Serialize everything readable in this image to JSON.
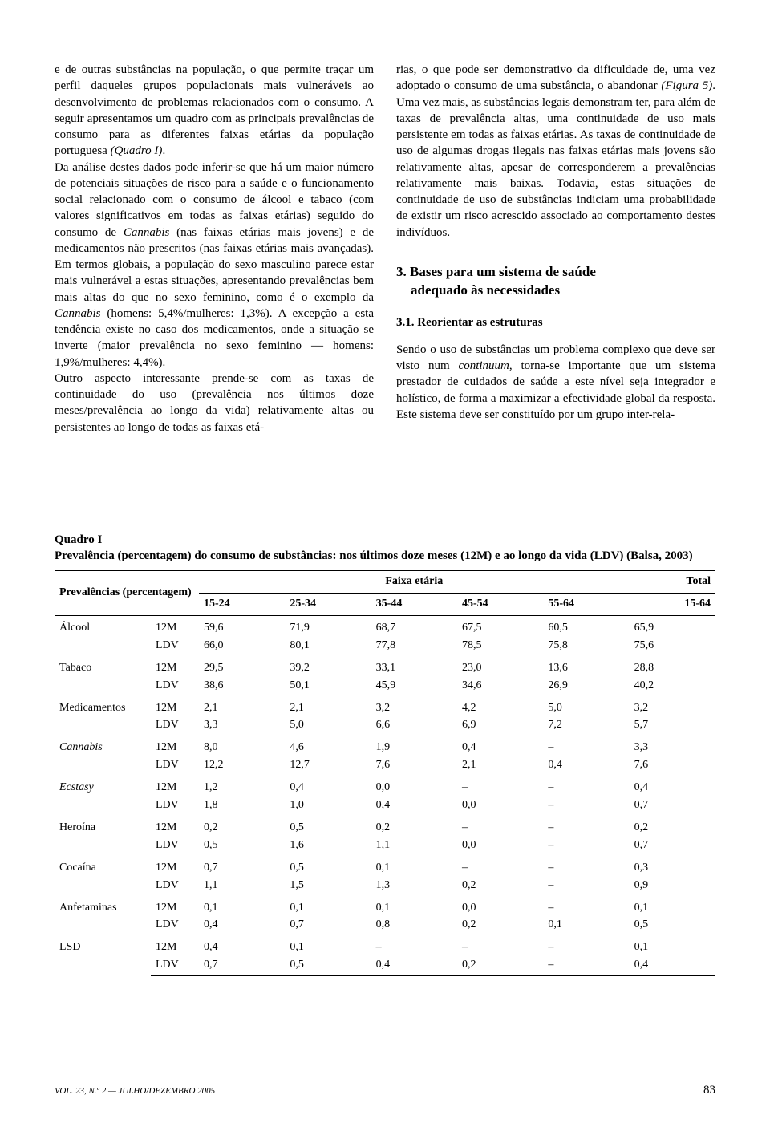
{
  "left_column": {
    "text": "e de outras substâncias na população, o que permite traçar um perfil daqueles grupos populacionais mais vulneráveis ao desenvolvimento de problemas relacionados com o consumo. A seguir apresentamos um quadro com as principais prevalências de consumo para as diferentes faixas etárias da população portuguesa (Quadro I).\nDa análise destes dados pode inferir-se que há um maior número de potenciais situações de risco para a saúde e o funcionamento social relacionado com o consumo de álcool e tabaco (com valores significativos em todas as faixas etárias) seguido do consumo de Cannabis (nas faixas etárias mais jovens) e de medicamentos não prescritos (nas faixas etárias mais avançadas). Em termos globais, a população do sexo masculino parece estar mais vulnerável a estas situações, apresentando prevalências bem mais altas do que no sexo feminino, como é o exemplo da Cannabis (homens: 5,4%/mulheres: 1,3%). A excepção a esta tendência existe no caso dos medicamentos, onde a situação se inverte (maior prevalência no sexo feminino — homens: 1,9%/mulheres: 4,4%).\nOutro aspecto interessante prende-se com as taxas de continuidade do uso (prevalência nos últimos doze meses/prevalência ao longo da vida) relativamente altas ou persistentes ao longo de todas as faixas etá-"
  },
  "right_column": {
    "text_top": "rias, o que pode ser demonstrativo da dificuldade de, uma vez adoptado o consumo de uma substância, o abandonar (Figura 5). Uma vez mais, as substâncias legais demonstram ter, para além de taxas de prevalência altas, uma continuidade de uso mais persistente em todas as faixas etárias. As taxas de continuidade de uso de algumas drogas ilegais nas faixas etárias mais jovens são relativamente altas, apesar de corresponderem a prevalências relativamente mais baixas. Todavia, estas situações de continuidade de uso de substâncias indiciam uma probabilidade de existir um risco acrescido associado ao comportamento destes indivíduos.",
    "section_title_line1": "3. Bases para um sistema de saúde",
    "section_title_line2": "adequado às necessidades",
    "sub_title": "3.1. Reorientar as estruturas",
    "text_bottom": "Sendo o uso de substâncias um problema complexo que deve ser visto num continuum, torna-se importante que um sistema prestador de cuidados de saúde a este nível seja integrador e holístico, de forma a maximizar a efectividade global da resposta. Este sistema deve ser constituído por um grupo inter-rela-"
  },
  "table": {
    "caption_bold": "Quadro I",
    "caption_rest": "Prevalência (percentagem) do consumo de substâncias: nos últimos doze meses (12M) e ao longo da vida (LDV) (Balsa, 2003)",
    "row_header_label": "Prevalências (percentagem)",
    "faixa_label": "Faixa etária",
    "total_label": "Total",
    "age_headers": [
      "15-24",
      "25-34",
      "35-44",
      "45-54",
      "55-64",
      "15-64"
    ],
    "measures": [
      "12M",
      "LDV"
    ],
    "substances": [
      {
        "name": "Álcool",
        "italic": false,
        "values": {
          "12M": [
            "59,6",
            "71,9",
            "68,7",
            "67,5",
            "60,5",
            "65,9"
          ],
          "LDV": [
            "66,0",
            "80,1",
            "77,8",
            "78,5",
            "75,8",
            "75,6"
          ]
        }
      },
      {
        "name": "Tabaco",
        "italic": false,
        "values": {
          "12M": [
            "29,5",
            "39,2",
            "33,1",
            "23,0",
            "13,6",
            "28,8"
          ],
          "LDV": [
            "38,6",
            "50,1",
            "45,9",
            "34,6",
            "26,9",
            "40,2"
          ]
        }
      },
      {
        "name": "Medicamentos",
        "italic": false,
        "values": {
          "12M": [
            "2,1",
            "2,1",
            "3,2",
            "4,2",
            "5,0",
            "3,2"
          ],
          "LDV": [
            "3,3",
            "5,0",
            "6,6",
            "6,9",
            "7,2",
            "5,7"
          ]
        }
      },
      {
        "name": "Cannabis",
        "italic": true,
        "values": {
          "12M": [
            "8,0",
            "4,6",
            "1,9",
            "0,4",
            "–",
            "3,3"
          ],
          "LDV": [
            "12,2",
            "12,7",
            "7,6",
            "2,1",
            "0,4",
            "7,6"
          ]
        }
      },
      {
        "name": "Ecstasy",
        "italic": true,
        "values": {
          "12M": [
            "1,2",
            "0,4",
            "0,0",
            "–",
            "–",
            "0,4"
          ],
          "LDV": [
            "1,8",
            "1,0",
            "0,4",
            "0,0",
            "–",
            "0,7"
          ]
        }
      },
      {
        "name": "Heroína",
        "italic": false,
        "values": {
          "12M": [
            "0,2",
            "0,5",
            "0,2",
            "–",
            "–",
            "0,2"
          ],
          "LDV": [
            "0,5",
            "1,6",
            "1,1",
            "0,0",
            "–",
            "0,7"
          ]
        }
      },
      {
        "name": "Cocaína",
        "italic": false,
        "values": {
          "12M": [
            "0,7",
            "0,5",
            "0,1",
            "–",
            "–",
            "0,3"
          ],
          "LDV": [
            "1,1",
            "1,5",
            "1,3",
            "0,2",
            "–",
            "0,9"
          ]
        }
      },
      {
        "name": "Anfetaminas",
        "italic": false,
        "values": {
          "12M": [
            "0,1",
            "0,1",
            "0,1",
            "0,0",
            "–",
            "0,1"
          ],
          "LDV": [
            "0,4",
            "0,7",
            "0,8",
            "0,2",
            "0,1",
            "0,5"
          ]
        }
      },
      {
        "name": "LSD",
        "italic": false,
        "values": {
          "12M": [
            "0,4",
            "0,1",
            "–",
            "–",
            "–",
            "0,1"
          ],
          "LDV": [
            "0,7",
            "0,5",
            "0,4",
            "0,2",
            "–",
            "0,4"
          ]
        }
      }
    ]
  },
  "footer": {
    "left": "VOL. 23, N.º 2 — JULHO/DEZEMBRO 2005",
    "page": "83"
  }
}
